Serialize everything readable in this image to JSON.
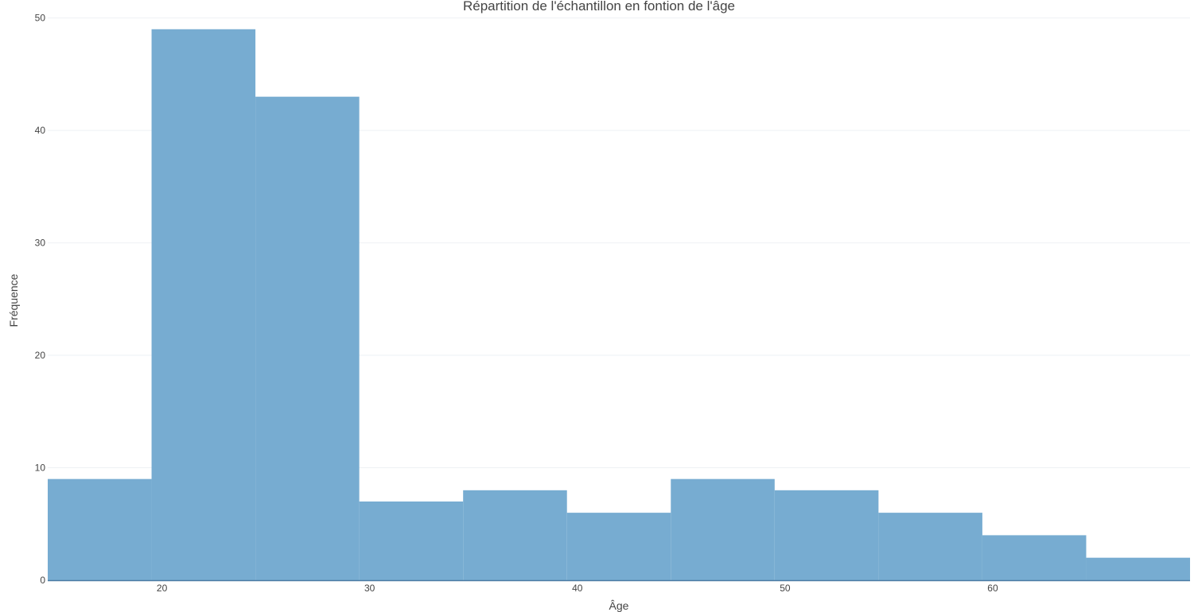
{
  "chart_data": {
    "type": "bar",
    "subtype": "histogram",
    "title": "Répartition de l'échantillon en fontion de l'âge",
    "xlabel": "Âge",
    "ylabel": "Fréquence",
    "bins": [
      {
        "x0": 14.5,
        "x1": 19.5,
        "count": 9
      },
      {
        "x0": 19.5,
        "x1": 24.5,
        "count": 49
      },
      {
        "x0": 24.5,
        "x1": 29.5,
        "count": 43
      },
      {
        "x0": 29.5,
        "x1": 34.5,
        "count": 7
      },
      {
        "x0": 34.5,
        "x1": 39.5,
        "count": 8
      },
      {
        "x0": 39.5,
        "x1": 44.5,
        "count": 6
      },
      {
        "x0": 44.5,
        "x1": 49.5,
        "count": 9
      },
      {
        "x0": 49.5,
        "x1": 54.5,
        "count": 8
      },
      {
        "x0": 54.5,
        "x1": 59.5,
        "count": 6
      },
      {
        "x0": 59.5,
        "x1": 64.5,
        "count": 4
      },
      {
        "x0": 64.5,
        "x1": 69.5,
        "count": 2
      }
    ],
    "xlim": [
      14.5,
      69.5
    ],
    "ylim": [
      0,
      51.6
    ],
    "xticks": [
      20,
      30,
      40,
      50,
      60
    ],
    "xtick_labels": [
      "20",
      "30",
      "40",
      "50",
      "60"
    ],
    "yticks": [
      0,
      10,
      20,
      30,
      40,
      50
    ],
    "ytick_labels": [
      "0",
      "10",
      "20",
      "30",
      "40",
      "50"
    ],
    "bar_color": "#77acd1",
    "grid": true,
    "grid_color": "#eef1f4",
    "axis_color": "#4a7aa4",
    "text_color": "#444444"
  }
}
